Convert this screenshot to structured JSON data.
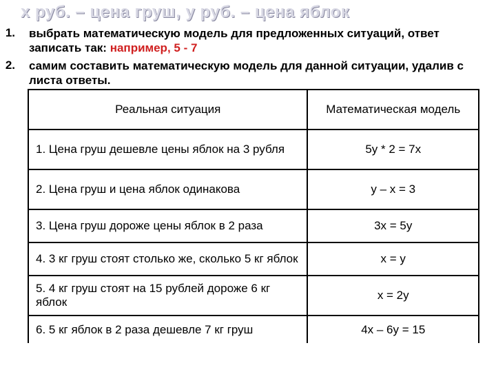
{
  "title": "х руб. – цена груш, у руб. – цена яблок",
  "list": [
    {
      "num": "1.",
      "text_pre": "выбрать математическую модель для предложенных ситуаций, ответ записать так: ",
      "example": "например, 5 - 7"
    },
    {
      "num": "2.",
      "text_pre": "самим составить математическую модель для данной ситуации, удалив с листа ответы.",
      "example": ""
    }
  ],
  "table": {
    "headers": {
      "situation": "Реальная ситуация",
      "model": "Математическая\nмодель"
    },
    "rows": [
      {
        "situation": "1. Цена груш дешевле цены яблок на 3 рубля",
        "model": "5у * 2 = 7х"
      },
      {
        "situation": "2. Цена груш и цена яблок одинакова",
        "model": "у – х = 3"
      },
      {
        "situation": "3. Цена груш дороже цены яблок в 2 раза",
        "model": "3х = 5у"
      },
      {
        "situation": "4. 3 кг груш стоят столько же, сколько 5 кг яблок",
        "model": "х = у"
      },
      {
        "situation": "5. 4 кг груш стоят на 15 рублей дороже 6 кг яблок",
        "model": "х = 2у"
      },
      {
        "situation": "6. 5 кг яблок в 2 раза дешевле 7 кг  груш",
        "model": "4х – 6у = 15"
      }
    ]
  },
  "colors": {
    "example_red": "#d02020",
    "border": "#000000",
    "text": "#000000",
    "title_fill": "#d8d8e4",
    "title_shadow": "#8888a0"
  },
  "fonts": {
    "title_size": 24,
    "body_size": 17,
    "family": "Arial"
  }
}
